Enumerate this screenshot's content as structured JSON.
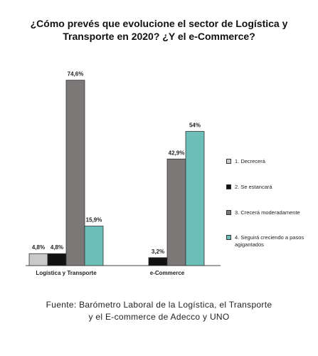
{
  "chart_data": {
    "type": "bar",
    "title": "¿Cómo prevés que evolucione el sector de Logística y Transporte en 2020? ¿Y el e-Commerce?",
    "source": "Fuente: Barómetro Laboral de la Logística, el Transporte y el E-commerce de Adecco y UNO",
    "categories": [
      "Logística y Transporte",
      "e-Commerce"
    ],
    "series": [
      {
        "name": "1. Decrecerá",
        "color": "#c9c9c9",
        "values": [
          4.8,
          null
        ],
        "value_labels": [
          "4,8%",
          null
        ]
      },
      {
        "name": "2. Se estancará",
        "color": "#111111",
        "values": [
          4.8,
          3.2
        ],
        "value_labels": [
          "4,8%",
          "3,2%"
        ]
      },
      {
        "name": "3. Crecerá moderadamente",
        "color": "#7d7878",
        "values": [
          74.6,
          42.9
        ],
        "value_labels": [
          "74,6%",
          "42,9%"
        ]
      },
      {
        "name": "4. Seguirá creciendo a pasos agigantados",
        "color": "#6cbfb8",
        "values": [
          15.9,
          54
        ],
        "value_labels": [
          "15,9%",
          "54%"
        ]
      }
    ]
  }
}
